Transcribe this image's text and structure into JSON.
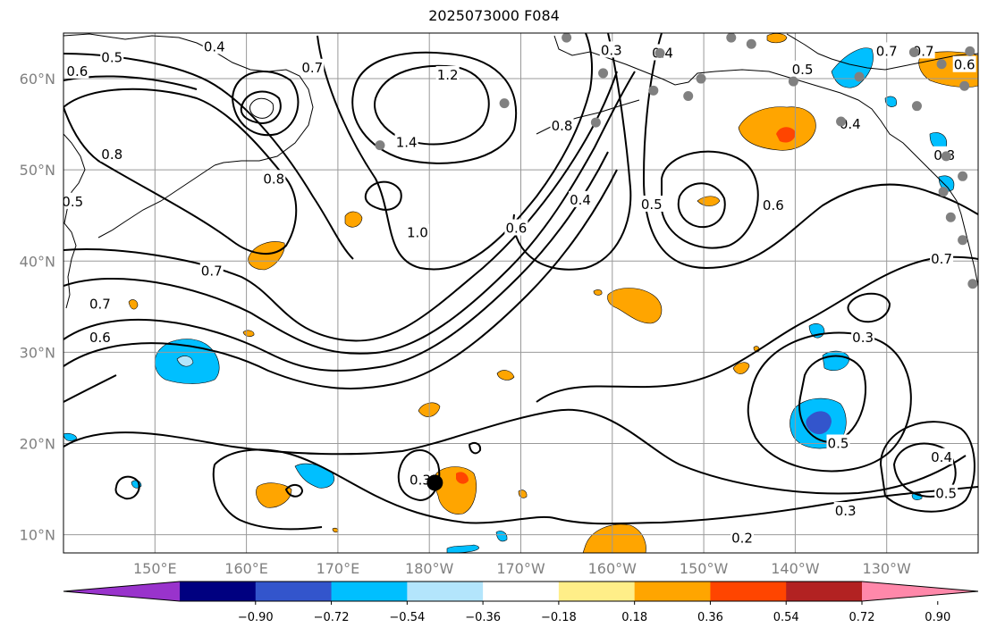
{
  "title": "2025073000 F084",
  "map": {
    "lon_range": [
      140,
      240
    ],
    "lat_range": [
      8,
      65
    ],
    "gridlines": true,
    "lat_ticks": [
      {
        "lat": 10,
        "label": "10°N"
      },
      {
        "lat": 20,
        "label": "20°N"
      },
      {
        "lat": 30,
        "label": "30°N"
      },
      {
        "lat": 40,
        "label": "40°N"
      },
      {
        "lat": 50,
        "label": "50°N"
      },
      {
        "lat": 60,
        "label": "60°N"
      }
    ],
    "lon_ticks": [
      {
        "lon": 150,
        "label": "150°E"
      },
      {
        "lon": 160,
        "label": "160°E"
      },
      {
        "lon": 170,
        "label": "170°E"
      },
      {
        "lon": 180,
        "label": "180°W"
      },
      {
        "lon": 190,
        "label": "170°W"
      },
      {
        "lon": 200,
        "label": "160°W"
      },
      {
        "lon": 210,
        "label": "150°W"
      },
      {
        "lon": 220,
        "label": "140°W"
      },
      {
        "lon": 230,
        "label": "130°W"
      }
    ],
    "contour_labels": [
      {
        "text": "0.4",
        "lon": 156.5,
        "lat": 63.5
      },
      {
        "text": "0.5",
        "lon": 145.3,
        "lat": 62.3
      },
      {
        "text": "0.6",
        "lon": 141.5,
        "lat": 60.8
      },
      {
        "text": "0.7",
        "lon": 167.2,
        "lat": 61.2
      },
      {
        "text": "1.2",
        "lon": 182.0,
        "lat": 60.4
      },
      {
        "text": "1.4",
        "lon": 177.5,
        "lat": 53.0
      },
      {
        "text": "0.8",
        "lon": 145.3,
        "lat": 51.7
      },
      {
        "text": "0.8",
        "lon": 163.0,
        "lat": 49.0
      },
      {
        "text": "0.8",
        "lon": 194.5,
        "lat": 54.8
      },
      {
        "text": "0.3",
        "lon": 199.9,
        "lat": 63.1
      },
      {
        "text": "0.4",
        "lon": 205.5,
        "lat": 62.8
      },
      {
        "text": "0.5",
        "lon": 220.8,
        "lat": 61.0
      },
      {
        "text": "0.7",
        "lon": 230.0,
        "lat": 63.0
      },
      {
        "text": "0.7",
        "lon": 234.0,
        "lat": 63.0
      },
      {
        "text": "0.6",
        "lon": 238.5,
        "lat": 61.5
      },
      {
        "text": "0.4",
        "lon": 226.0,
        "lat": 55.0
      },
      {
        "text": "0.8",
        "lon": 236.3,
        "lat": 51.6
      },
      {
        "text": "0.5",
        "lon": 141.0,
        "lat": 46.5
      },
      {
        "text": "1.0",
        "lon": 178.7,
        "lat": 43.1
      },
      {
        "text": "0.6",
        "lon": 189.5,
        "lat": 43.6
      },
      {
        "text": "0.4",
        "lon": 196.5,
        "lat": 46.7
      },
      {
        "text": "0.5",
        "lon": 204.3,
        "lat": 46.2
      },
      {
        "text": "0.6",
        "lon": 217.6,
        "lat": 46.1
      },
      {
        "text": "0.7",
        "lon": 156.2,
        "lat": 38.9
      },
      {
        "text": "0.7",
        "lon": 144.0,
        "lat": 35.3
      },
      {
        "text": "0.6",
        "lon": 144.0,
        "lat": 31.6
      },
      {
        "text": "0.7",
        "lon": 236.0,
        "lat": 40.2
      },
      {
        "text": "0.3",
        "lon": 227.4,
        "lat": 31.6
      },
      {
        "text": "0.5",
        "lon": 224.7,
        "lat": 20.0
      },
      {
        "text": "0.4",
        "lon": 236.0,
        "lat": 18.5
      },
      {
        "text": "0.5",
        "lon": 236.5,
        "lat": 14.5
      },
      {
        "text": "0.3",
        "lon": 179.0,
        "lat": 16.0
      },
      {
        "text": "0.3",
        "lon": 225.5,
        "lat": 12.6
      },
      {
        "text": "0.2",
        "lon": 214.2,
        "lat": 9.6
      }
    ],
    "storm_marker": {
      "lon": 180.6,
      "lat": 15.7
    },
    "stations": [
      {
        "lon": 195.0,
        "lat": 64.5
      },
      {
        "lon": 199.0,
        "lat": 60.6
      },
      {
        "lon": 205.2,
        "lat": 62.8
      },
      {
        "lon": 209.7,
        "lat": 60.0
      },
      {
        "lon": 213.0,
        "lat": 64.5
      },
      {
        "lon": 215.2,
        "lat": 63.8
      },
      {
        "lon": 219.8,
        "lat": 59.7
      },
      {
        "lon": 227.0,
        "lat": 60.2
      },
      {
        "lon": 233.0,
        "lat": 62.9
      },
      {
        "lon": 236.0,
        "lat": 61.6
      },
      {
        "lon": 239.1,
        "lat": 63.0
      },
      {
        "lon": 238.5,
        "lat": 59.2
      },
      {
        "lon": 204.5,
        "lat": 58.7
      },
      {
        "lon": 208.3,
        "lat": 58.1
      },
      {
        "lon": 198.2,
        "lat": 55.2
      },
      {
        "lon": 188.2,
        "lat": 57.3
      },
      {
        "lon": 174.6,
        "lat": 52.7
      },
      {
        "lon": 225.0,
        "lat": 55.3
      },
      {
        "lon": 236.5,
        "lat": 51.5
      },
      {
        "lon": 238.3,
        "lat": 49.3
      },
      {
        "lon": 237.0,
        "lat": 44.8
      },
      {
        "lon": 238.3,
        "lat": 42.3
      },
      {
        "lon": 239.4,
        "lat": 37.5
      },
      {
        "lon": 233.3,
        "lat": 57.0
      },
      {
        "lon": 236.2,
        "lat": 47.6
      }
    ]
  },
  "colorbar": {
    "colors": [
      "#9933cc",
      "#000080",
      "#3355cc",
      "#00bfff",
      "#b3e5fc",
      "#ffffff",
      "#ffee88",
      "#ffa500",
      "#ff4500",
      "#b22222",
      "#ff88aa"
    ],
    "tick_labels": [
      "−0.90",
      "−0.72",
      "−0.54",
      "−0.36",
      "−0.18",
      "0.18",
      "0.36",
      "0.54",
      "0.72",
      "0.90"
    ]
  }
}
